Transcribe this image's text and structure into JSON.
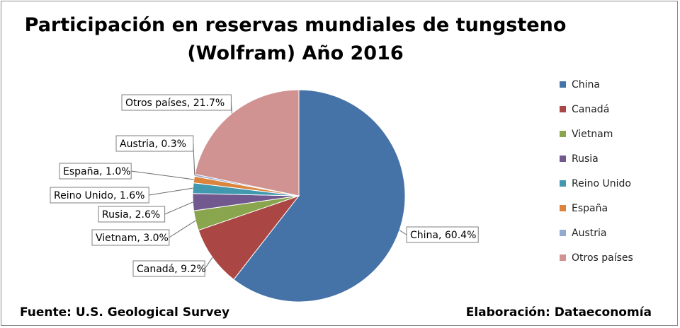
{
  "chart_data": {
    "type": "pie",
    "title_line1": "Participación en reservas mundiales de tungsteno",
    "title_line2": "(Wolfram) Año 2016",
    "slices": [
      {
        "name": "China",
        "value": 60.4,
        "label": "China, 60.4%",
        "color": "#4572A7"
      },
      {
        "name": "Canadá",
        "value": 9.2,
        "label": "Canadá, 9.2%",
        "color": "#AA4643"
      },
      {
        "name": "Vietnam",
        "value": 3.0,
        "label": "Vietnam, 3.0%",
        "color": "#89A54E"
      },
      {
        "name": "Rusia",
        "value": 2.6,
        "label": "Rusia, 2.6%",
        "color": "#71588F"
      },
      {
        "name": "Reino Unido",
        "value": 1.6,
        "label": "Reino Unido, 1.6%",
        "color": "#4198AF"
      },
      {
        "name": "España",
        "value": 1.0,
        "label": "España, 1.0%",
        "color": "#DB843D"
      },
      {
        "name": "Austria",
        "value": 0.3,
        "label": "Austria, 0.3%",
        "color": "#93A9CF"
      },
      {
        "name": "Otros países",
        "value": 21.7,
        "label": "Otros países, 21.7%",
        "color": "#D19392"
      }
    ],
    "legend_position": "right"
  },
  "footer": {
    "source": "Fuente: U.S. Geological Survey",
    "credit": "Elaboración: Dataeconomía"
  }
}
